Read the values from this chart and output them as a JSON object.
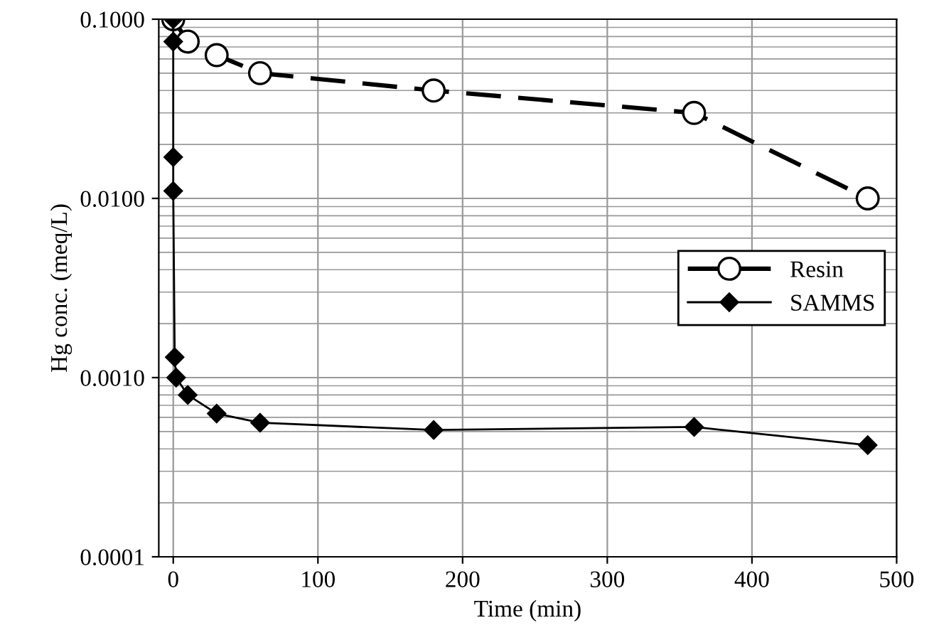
{
  "chart_data": {
    "type": "line",
    "xlabel": "Time (min)",
    "ylabel": "Hg conc. (meq/L)",
    "log": "y",
    "grid": true,
    "legend": "right",
    "xlim": [
      -10,
      500
    ],
    "xticks": [
      0,
      100,
      200,
      300,
      400,
      500
    ],
    "ylim": [
      0.0001,
      0.1
    ],
    "yticks": [
      {
        "value": 0.0001,
        "label": "0.0001"
      },
      {
        "value": 0.001,
        "label": "0.0010"
      },
      {
        "value": 0.01,
        "label": "0.0100"
      },
      {
        "value": 0.1,
        "label": "0.1000"
      }
    ],
    "series": [
      {
        "name": "Resin",
        "color": "#000000",
        "marker": "circle",
        "line_style": "dashed",
        "x": [
          0,
          10,
          30,
          60,
          180,
          360,
          480
        ],
        "values": [
          0.1,
          0.075,
          0.063,
          0.05,
          0.04,
          0.03,
          0.01
        ]
      },
      {
        "name": "SAMMS",
        "color": "#000000",
        "marker": "diamond",
        "line_style": "solid",
        "x": [
          0,
          0,
          0,
          0,
          1,
          2,
          10,
          30,
          60,
          180,
          360,
          480
        ],
        "values": [
          0.1,
          0.075,
          0.017,
          0.011,
          0.0013,
          0.001,
          0.0008,
          0.00063,
          0.00056,
          0.00051,
          0.00053,
          0.00042
        ]
      }
    ]
  }
}
